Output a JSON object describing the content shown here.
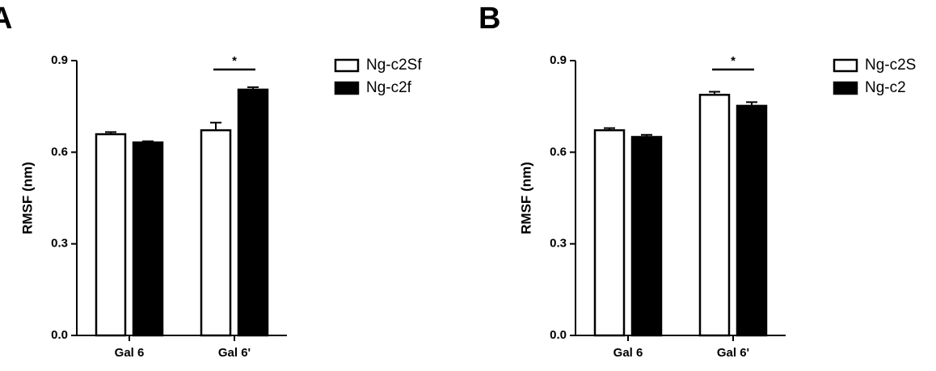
{
  "chart_data": [
    {
      "type": "bar",
      "panel": "A",
      "y_label": "RMSF (nm)",
      "categories": [
        "Gal 6",
        "Gal 6'"
      ],
      "series": [
        {
          "name": "Ng-c2Sf",
          "color": "#ffffff",
          "values": [
            0.659,
            0.672
          ],
          "errors": [
            0.007,
            0.025
          ]
        },
        {
          "name": "Ng-c2f",
          "color": "#000000",
          "values": [
            0.632,
            0.805
          ],
          "errors": [
            0.004,
            0.008
          ]
        }
      ],
      "ylim": [
        0,
        0.9
      ],
      "yticks": [
        {
          "value": 0,
          "label": "0.0"
        },
        0.3,
        0.6,
        0.9
      ],
      "significance": "*"
    },
    {
      "type": "bar",
      "panel": "B",
      "y_label": "RMSF (nm)",
      "categories": [
        "Gal 6",
        "Gal 6'"
      ],
      "series": [
        {
          "name": "Ng-c2S",
          "color": "#ffffff",
          "values": [
            0.672,
            0.788
          ],
          "errors": [
            0.007,
            0.01
          ]
        },
        {
          "name": "Ng-c2",
          "color": "#000000",
          "values": [
            0.65,
            0.752
          ],
          "errors": [
            0.007,
            0.012
          ]
        }
      ],
      "ylim": [
        0,
        0.9
      ],
      "yticks": [
        {
          "value": 0,
          "label": "0.0"
        },
        0.3,
        0.6,
        0.9
      ],
      "significance": "*"
    }
  ]
}
